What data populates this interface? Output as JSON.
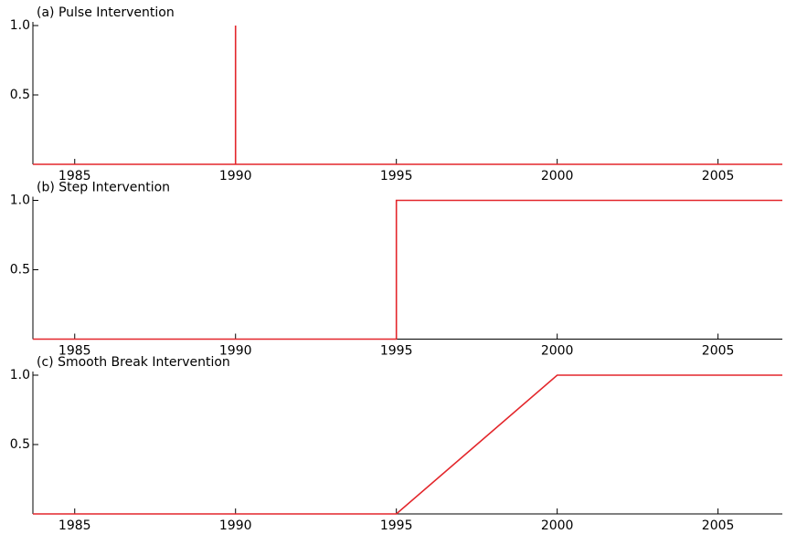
{
  "chart_data": [
    {
      "type": "line",
      "title": "(a) Pulse Intervention",
      "x": [
        1983.7,
        1990,
        1990,
        1990,
        2007
      ],
      "series": [
        {
          "color": "#e3262b",
          "values": [
            0,
            0,
            1,
            0,
            0
          ]
        }
      ],
      "xlim": [
        1983.7,
        2007
      ],
      "xticks": [
        1985,
        1990,
        1995,
        2000,
        2005
      ],
      "ylim": [
        0,
        1
      ],
      "yticks": [
        0.5,
        {
          "value": 1,
          "label": "1.0"
        }
      ]
    },
    {
      "type": "line",
      "title": "(b) Step Intervention",
      "x": [
        1983.7,
        1995,
        1995,
        2007
      ],
      "series": [
        {
          "color": "#e3262b",
          "values": [
            0,
            0,
            1,
            1
          ]
        }
      ],
      "xlim": [
        1983.7,
        2007
      ],
      "xticks": [
        1985,
        1990,
        1995,
        2000,
        2005
      ],
      "ylim": [
        0,
        1
      ],
      "yticks": [
        0.5,
        {
          "value": 1,
          "label": "1.0"
        }
      ]
    },
    {
      "type": "line",
      "title": "(c) Smooth Break Intervention",
      "x": [
        1983.7,
        1995,
        2000,
        2007
      ],
      "series": [
        {
          "color": "#e3262b",
          "values": [
            0,
            0,
            1,
            1
          ]
        }
      ],
      "xlim": [
        1983.7,
        2007
      ],
      "xticks": [
        1985,
        1990,
        1995,
        2000,
        2005
      ],
      "ylim": [
        0,
        1
      ],
      "yticks": [
        0.5,
        {
          "value": 1,
          "label": "1.0"
        }
      ]
    }
  ]
}
